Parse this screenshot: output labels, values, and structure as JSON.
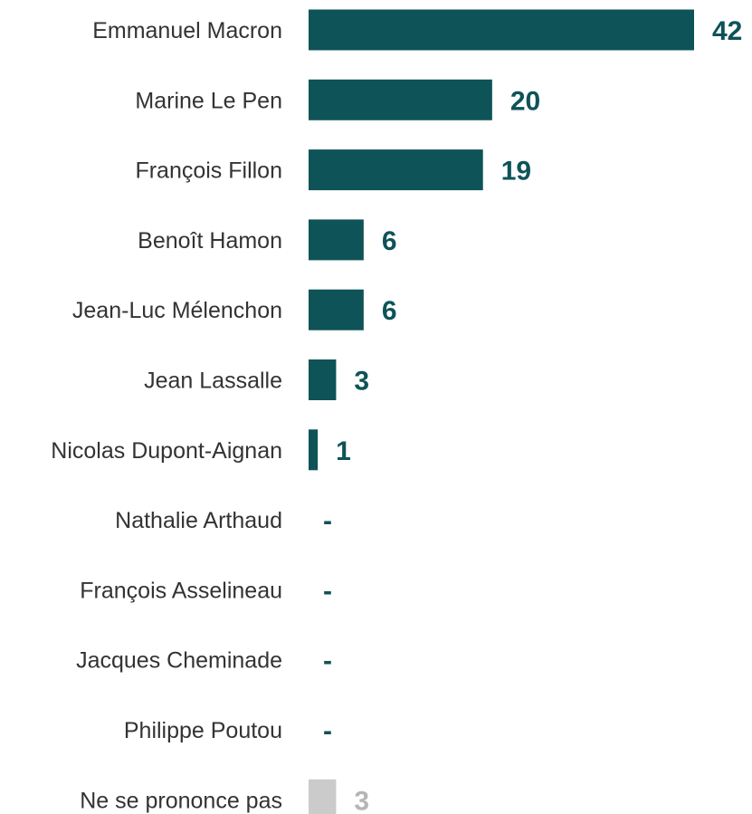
{
  "colors": {
    "primary": "#0e5358",
    "neutral": "#cbcbcb",
    "neutral_text": "#b5b5b5",
    "label_text": "#333333"
  },
  "chart_data": {
    "type": "bar",
    "orientation": "horizontal",
    "title": "",
    "xlabel": "",
    "ylabel": "",
    "xlim": [
      0,
      42
    ],
    "grid": false,
    "legend": "none",
    "categories": [
      "Emmanuel Macron",
      "Marine Le Pen",
      "François Fillon",
      "Benoît Hamon",
      "Jean-Luc Mélenchon",
      "Jean Lassalle",
      "Nicolas Dupont-Aignan",
      "Nathalie Arthaud",
      "François Asselineau",
      "Jacques Cheminade",
      "Philippe Poutou",
      "Ne se prononce pas"
    ],
    "values": [
      42,
      20,
      19,
      6,
      6,
      3,
      1,
      0,
      0,
      0,
      0,
      3
    ],
    "value_labels": [
      "42",
      "20",
      "19",
      "6",
      "6",
      "3",
      "1",
      "-",
      "-",
      "-",
      "-",
      "3"
    ],
    "neutral_categories": [
      "Ne se prononce pas"
    ]
  }
}
